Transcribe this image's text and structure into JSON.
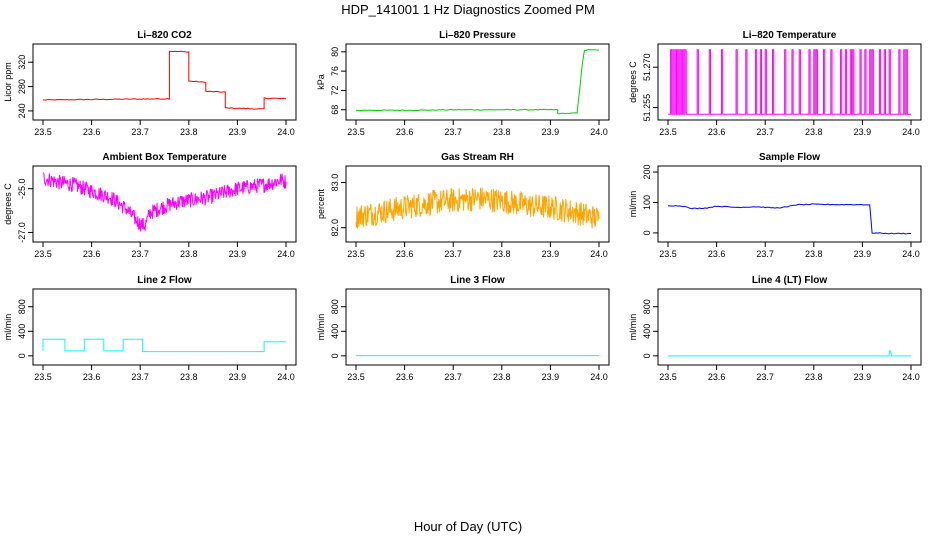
{
  "figure": {
    "title": "HDP_141001  1 Hz Diagnostics Zoomed PM",
    "xlabel": "Hour of Day (UTC)"
  },
  "chart_data": [
    {
      "type": "line",
      "title": "Li–820 CO2",
      "ylabel": "Licor ppm",
      "xlim": [
        23.5,
        24.0
      ],
      "ylim": [
        230,
        345
      ],
      "xticks": [
        "23.5",
        "23.6",
        "23.7",
        "23.8",
        "23.9",
        "24.0"
      ],
      "yticks": [
        "240",
        "280",
        "320"
      ],
      "ytick_values": [
        240,
        280,
        320
      ],
      "color": "#ff0000",
      "x": [
        23.5,
        23.76,
        23.76,
        23.8,
        23.8,
        23.835,
        23.835,
        23.875,
        23.875,
        23.955,
        23.955,
        24.0
      ],
      "y": [
        258,
        260,
        338,
        337,
        289,
        287,
        272,
        271,
        245,
        243,
        261,
        260
      ]
    },
    {
      "type": "line",
      "title": "Li–820 Pressure",
      "ylabel": "kPa",
      "xlim": [
        23.5,
        24.0
      ],
      "ylim": [
        66.5,
        81
      ],
      "xticks": [
        "23.5",
        "23.6",
        "23.7",
        "23.8",
        "23.9",
        "24.0"
      ],
      "yticks": [
        "68",
        "72",
        "76",
        "80"
      ],
      "ytick_values": [
        68,
        72,
        76,
        80
      ],
      "color": "#00cc00",
      "x": [
        23.5,
        23.62,
        23.7,
        23.85,
        23.915,
        23.915,
        23.955,
        23.96,
        23.965,
        23.97,
        23.975,
        24.0
      ],
      "y": [
        67.9,
        67.9,
        68.0,
        68.0,
        68.0,
        67.2,
        67.3,
        72.0,
        77.0,
        80.2,
        80.4,
        80.4
      ]
    },
    {
      "type": "line",
      "title": "Li–820 Temperature",
      "ylabel": "degrees C",
      "xlim": [
        23.5,
        24.0
      ],
      "ylim": [
        51.2515,
        51.2775
      ],
      "xticks": [
        "23.5",
        "23.6",
        "23.7",
        "23.8",
        "23.9",
        "24.0"
      ],
      "yticks": [
        "51.255",
        "51.270"
      ],
      "ytick_values": [
        51.255,
        51.27
      ],
      "color": "#ff00ff",
      "low_value": 51.2525,
      "high_value": 51.2765,
      "spike_x": [
        23.505,
        23.51,
        23.515,
        23.52,
        23.525,
        23.53,
        23.535,
        23.56,
        23.585,
        23.61,
        23.64,
        23.66,
        23.68,
        23.69,
        23.7,
        23.715,
        23.74,
        23.755,
        23.77,
        23.79,
        23.8,
        23.805,
        23.82,
        23.835,
        23.855,
        23.865,
        23.875,
        23.88,
        23.895,
        23.905,
        23.915,
        23.92,
        23.935,
        23.945,
        23.955,
        23.975,
        23.985,
        23.99
      ]
    },
    {
      "type": "line",
      "title": "Ambient Box Temperature",
      "ylabel": "degrees C",
      "xlim": [
        23.5,
        24.0
      ],
      "ylim": [
        -27.3,
        -24.1
      ],
      "xticks": [
        "23.5",
        "23.6",
        "23.7",
        "23.8",
        "23.9",
        "24.0"
      ],
      "yticks": [
        "-27.0",
        "-25.0"
      ],
      "ytick_values": [
        -27.0,
        -25.0
      ],
      "color": "#ff00ff",
      "x": [
        23.5,
        23.53,
        23.56,
        23.6,
        23.64,
        23.67,
        23.69,
        23.7,
        23.71,
        23.72,
        23.75,
        23.78,
        23.81,
        23.84,
        23.87,
        23.9,
        23.93,
        23.96,
        23.99,
        24.0
      ],
      "y": [
        -24.5,
        -24.7,
        -24.8,
        -25.1,
        -25.4,
        -25.9,
        -26.4,
        -26.6,
        -26.7,
        -26.1,
        -25.8,
        -25.6,
        -25.5,
        -25.4,
        -25.2,
        -25.0,
        -24.9,
        -24.8,
        -24.6,
        -24.7
      ]
    },
    {
      "type": "line",
      "title": "Gas Stream RH",
      "ylabel": "percent",
      "xlim": [
        23.5,
        24.0
      ],
      "ylim": [
        81.75,
        83.3
      ],
      "xticks": [
        "23.5",
        "23.6",
        "23.7",
        "23.8",
        "23.9",
        "24.0"
      ],
      "yticks": [
        "82.0",
        "83.0"
      ],
      "ytick_values": [
        82.0,
        83.0
      ],
      "color": "#ffa500",
      "x": [
        23.5,
        23.55,
        23.6,
        23.65,
        23.7,
        23.75,
        23.8,
        23.85,
        23.9,
        23.95,
        24.0
      ],
      "y": [
        82.25,
        82.35,
        82.45,
        82.55,
        82.6,
        82.65,
        82.6,
        82.5,
        82.45,
        82.35,
        82.2
      ]
    },
    {
      "type": "line",
      "title": "Sample Flow",
      "ylabel": "ml/min",
      "xlim": [
        23.5,
        24.0
      ],
      "ylim": [
        -20,
        210
      ],
      "xticks": [
        "23.5",
        "23.6",
        "23.7",
        "23.8",
        "23.9",
        "24.0"
      ],
      "yticks": [
        "0",
        "100",
        "200"
      ],
      "ytick_values": [
        0,
        100,
        200
      ],
      "color": "#0000ff",
      "x": [
        23.5,
        23.535,
        23.545,
        23.58,
        23.6,
        23.64,
        23.68,
        23.72,
        23.745,
        23.76,
        23.8,
        23.85,
        23.9,
        23.915,
        23.92,
        23.96,
        24.0
      ],
      "y": [
        90,
        88,
        80,
        82,
        88,
        84,
        86,
        82,
        85,
        92,
        94,
        93,
        93,
        92,
        0,
        -2,
        -2
      ]
    },
    {
      "type": "line",
      "title": "Line 2 Flow",
      "ylabel": "ml/min",
      "xlim": [
        23.5,
        24.0
      ],
      "ylim": [
        -100,
        1040
      ],
      "xticks": [
        "23.5",
        "23.6",
        "23.7",
        "23.8",
        "23.9",
        "24.0"
      ],
      "yticks": [
        "0",
        "400",
        "800"
      ],
      "ytick_values": [
        0,
        400,
        800
      ],
      "color": "#00ffff",
      "x": [
        23.5,
        23.5,
        23.545,
        23.545,
        23.585,
        23.585,
        23.625,
        23.625,
        23.665,
        23.665,
        23.705,
        23.705,
        23.955,
        23.955,
        24.0
      ],
      "y": [
        80,
        270,
        270,
        80,
        80,
        270,
        270,
        80,
        80,
        270,
        270,
        70,
        70,
        230,
        230
      ]
    },
    {
      "type": "line",
      "title": "Line 3 Flow",
      "ylabel": "ml/min",
      "xlim": [
        23.5,
        24.0
      ],
      "ylim": [
        -100,
        1040
      ],
      "xticks": [
        "23.5",
        "23.6",
        "23.7",
        "23.8",
        "23.9",
        "24.0"
      ],
      "yticks": [
        "0",
        "400",
        "800"
      ],
      "ytick_values": [
        0,
        400,
        800
      ],
      "color": "#00ffff",
      "x": [
        23.5,
        24.0
      ],
      "y": [
        5,
        5
      ]
    },
    {
      "type": "line",
      "title": "Line 4 (LT) Flow",
      "ylabel": "ml/min",
      "xlim": [
        23.5,
        24.0
      ],
      "ylim": [
        -100,
        1040
      ],
      "xticks": [
        "23.5",
        "23.6",
        "23.7",
        "23.8",
        "23.9",
        "24.0"
      ],
      "yticks": [
        "0",
        "400",
        "800"
      ],
      "ytick_values": [
        0,
        400,
        800
      ],
      "color": "#00ffff",
      "x": [
        23.5,
        23.955,
        23.956,
        23.958,
        23.96,
        24.0
      ],
      "y": [
        0,
        0,
        80,
        80,
        0,
        0
      ]
    }
  ]
}
